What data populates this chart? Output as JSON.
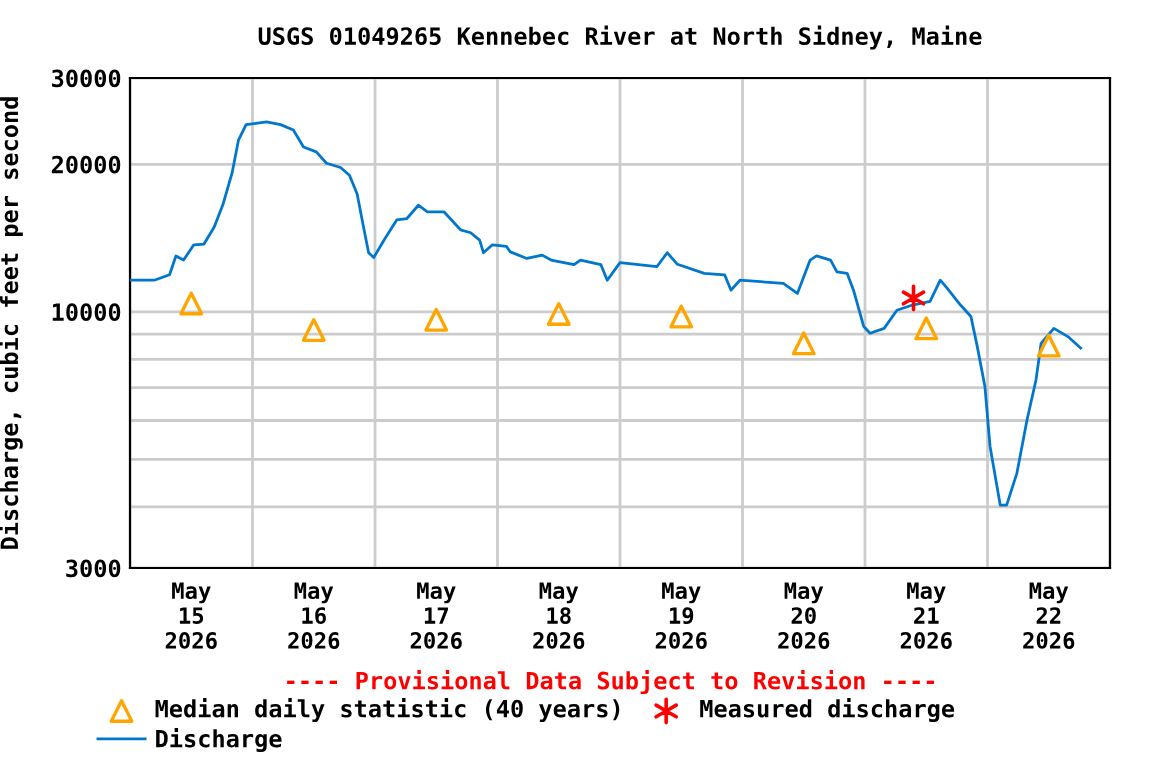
{
  "chart_data": {
    "type": "line",
    "title": "USGS 01049265 Kennebec River at North Sidney, Maine",
    "ylabel": "Discharge, cubic feet per second",
    "annotations": [
      "---- Provisional Data Subject to Revision ----"
    ],
    "log": "y",
    "grid": true,
    "legend": "bottom",
    "xlim": [
      "2026-05-15T00:00",
      "2026-05-23T00:00"
    ],
    "xticks": [
      {
        "value": "2026-05-15T00:00",
        "label": null
      },
      {
        "value": "2026-05-16T00:00",
        "label": null
      },
      {
        "value": "2026-05-17T00:00",
        "label": null
      },
      {
        "value": "2026-05-18T00:00",
        "label": null
      },
      {
        "value": "2026-05-19T00:00",
        "label": null
      },
      {
        "value": "2026-05-20T00:00",
        "label": null
      },
      {
        "value": "2026-05-21T00:00",
        "label": null
      },
      {
        "value": "2026-05-22T00:00",
        "label": null
      },
      {
        "value": "2026-05-23T00:00",
        "label": null
      },
      {
        "value": "2026-05-15T12:00",
        "label": "May\n15\n2026"
      },
      {
        "value": "2026-05-16T12:00",
        "label": "May\n16\n2026"
      },
      {
        "value": "2026-05-17T12:00",
        "label": "May\n17\n2026"
      },
      {
        "value": "2026-05-18T12:00",
        "label": "May\n18\n2026"
      },
      {
        "value": "2026-05-19T12:00",
        "label": "May\n19\n2026"
      },
      {
        "value": "2026-05-20T12:00",
        "label": "May\n20\n2026"
      },
      {
        "value": "2026-05-21T12:00",
        "label": "May\n21\n2026"
      },
      {
        "value": "2026-05-22T12:00",
        "label": "May\n22\n2026"
      }
    ],
    "ylim": [
      3000,
      30000
    ],
    "yticks": [
      3000,
      {
        "value": 4000,
        "label": null
      },
      {
        "value": 5000,
        "label": null
      },
      {
        "value": 6000,
        "label": null
      },
      {
        "value": 7000,
        "label": null
      },
      {
        "value": 8000,
        "label": null
      },
      {
        "value": 9000,
        "label": null
      },
      10000,
      20000,
      30000
    ],
    "series": [
      {
        "name": "Median daily statistic (40 years)",
        "type": "scatter",
        "marker": "triangle",
        "color": "#ffa500",
        "x": [
          "2026-05-15T12:00",
          "2026-05-16T12:00",
          "2026-05-17T12:00",
          "2026-05-18T12:00",
          "2026-05-19T12:00",
          "2026-05-20T12:00",
          "2026-05-21T12:00",
          "2026-05-22T12:00"
        ],
        "values": [
          10400,
          9180,
          9630,
          9900,
          9780,
          8620,
          9250,
          8530
        ]
      },
      {
        "name": "Discharge",
        "color": "#0077cc",
        "x": [
          "2026-05-15T00:15",
          "2026-05-15T04:45",
          "2026-05-15T07:45",
          "2026-05-15T09:00",
          "2026-05-15T10:30",
          "2026-05-15T12:30",
          "2026-05-15T14:30",
          "2026-05-15T16:30",
          "2026-05-15T18:15",
          "2026-05-15T20:00",
          "2026-05-15T21:15",
          "2026-05-15T22:45",
          "2026-05-16T02:45",
          "2026-05-16T05:30",
          "2026-05-16T08:00",
          "2026-05-16T10:00",
          "2026-05-16T12:30",
          "2026-05-16T14:30",
          "2026-05-16T17:15",
          "2026-05-16T19:00",
          "2026-05-16T20:30",
          "2026-05-16T21:45",
          "2026-05-16T22:45",
          "2026-05-16T23:45",
          "2026-05-17T01:45",
          "2026-05-17T04:15",
          "2026-05-17T06:15",
          "2026-05-17T08:30",
          "2026-05-17T10:15",
          "2026-05-17T13:30",
          "2026-05-17T16:45",
          "2026-05-17T18:45",
          "2026-05-17T20:30",
          "2026-05-17T21:15",
          "2026-05-17T23:00",
          "2026-05-18T01:45",
          "2026-05-18T02:30",
          "2026-05-18T05:45",
          "2026-05-18T08:45",
          "2026-05-18T10:30",
          "2026-05-18T15:00",
          "2026-05-18T16:15",
          "2026-05-18T20:15",
          "2026-05-18T21:30",
          "2026-05-19T00:00",
          "2026-05-19T07:15",
          "2026-05-19T09:15",
          "2026-05-19T11:15",
          "2026-05-19T16:30",
          "2026-05-19T20:30",
          "2026-05-19T21:45",
          "2026-05-19T23:30",
          "2026-05-20T08:00",
          "2026-05-20T10:45",
          "2026-05-20T13:15",
          "2026-05-20T14:30",
          "2026-05-20T17:15",
          "2026-05-20T18:30",
          "2026-05-20T20:30",
          "2026-05-20T21:45",
          "2026-05-20T23:45",
          "2026-05-21T01:00",
          "2026-05-21T03:45",
          "2026-05-21T06:15",
          "2026-05-21T09:00",
          "2026-05-21T12:45",
          "2026-05-21T14:45",
          "2026-05-21T16:00",
          "2026-05-21T18:45",
          "2026-05-21T20:45",
          "2026-05-21T22:00",
          "2026-05-21T23:30",
          "2026-05-22T00:30",
          "2026-05-22T02:30",
          "2026-05-22T03:45",
          "2026-05-22T05:45",
          "2026-05-22T07:45",
          "2026-05-22T09:30",
          "2026-05-22T10:30",
          "2026-05-22T13:00",
          "2026-05-22T15:45",
          "2026-05-22T18:15"
        ],
        "values": [
          11600,
          11600,
          11900,
          13000,
          12750,
          13700,
          13750,
          14900,
          16600,
          19200,
          22400,
          24100,
          24400,
          24100,
          23500,
          21700,
          21200,
          20100,
          19700,
          19000,
          17400,
          14900,
          13200,
          12900,
          14000,
          15400,
          15500,
          16500,
          16000,
          16000,
          14700,
          14500,
          14000,
          13200,
          13700,
          13600,
          13250,
          12850,
          13050,
          12750,
          12480,
          12750,
          12480,
          11600,
          12600,
          12370,
          13200,
          12500,
          11980,
          11900,
          11070,
          11600,
          11430,
          10900,
          12750,
          13000,
          12750,
          12060,
          11980,
          11070,
          9330,
          9040,
          9250,
          10070,
          10300,
          10500,
          11600,
          11200,
          10310,
          9780,
          8490,
          7030,
          5310,
          4030,
          4030,
          4680,
          6020,
          7260,
          8620,
          9250,
          8900,
          8430
        ]
      },
      {
        "name": "Measured discharge",
        "type": "scatter",
        "marker": "cross",
        "color": "#ff0000",
        "x": [
          "2026-05-21T09:30"
        ],
        "values": [
          10670
        ]
      }
    ]
  }
}
